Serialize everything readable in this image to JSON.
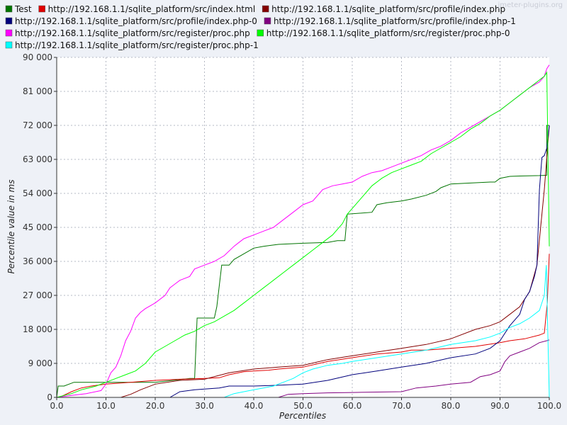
{
  "watermark": "jmeter-plugins.org",
  "chart_data": {
    "type": "line",
    "xlabel": "Percentiles",
    "ylabel": "Percentile value in ms",
    "xlim": [
      0,
      100
    ],
    "ylim": [
      0,
      90000
    ],
    "x_ticks": [
      "0.0",
      "10.0",
      "20.0",
      "30.0",
      "40.0",
      "50.0",
      "60.0",
      "70.0",
      "80.0",
      "90.0",
      "100.0"
    ],
    "y_ticks": [
      "0",
      "9 000",
      "18 000",
      "27 000",
      "36 000",
      "45 000",
      "54 000",
      "63 000",
      "72 000",
      "81 000",
      "90 000"
    ],
    "grid": true,
    "legend_position": "top",
    "series": [
      {
        "name": "Test",
        "color": "#007400",
        "x": [
          0,
          0.3,
          1.5,
          3.5,
          10,
          20,
          27,
          28,
          28.5,
          32,
          32.5,
          33.5,
          35,
          36,
          38,
          40,
          42,
          45,
          50,
          55,
          57,
          58.5,
          59,
          64,
          65,
          67,
          70,
          72,
          75,
          77,
          78,
          80,
          88,
          89,
          90,
          92,
          94,
          98,
          99.5,
          99.5,
          100
        ],
        "y": [
          0,
          3000,
          3000,
          4000,
          4000,
          4000,
          5000,
          5000,
          21000,
          21000,
          24000,
          35000,
          35000,
          36500,
          38000,
          39500,
          40000,
          40500,
          40800,
          41000,
          41500,
          41500,
          48500,
          49000,
          51000,
          51500,
          52000,
          52500,
          53500,
          54500,
          55500,
          56500,
          57000,
          57000,
          58000,
          58500,
          58600,
          58700,
          58800,
          72000,
          72000
        ]
      },
      {
        "name": "http://192.168.1.1/sqlite_platform/src/index.html",
        "color": "#e00000",
        "x": [
          0,
          1,
          3,
          5,
          7,
          10,
          13,
          15,
          20,
          25,
          30,
          33,
          35,
          38,
          40,
          43,
          45,
          50,
          55,
          60,
          65,
          70,
          72,
          75,
          80,
          85,
          90,
          92,
          95,
          98,
          99,
          99.6,
          100
        ],
        "y": [
          0,
          300,
          1500,
          2500,
          3000,
          3500,
          3800,
          4000,
          4500,
          4800,
          5000,
          5200,
          6000,
          6800,
          7000,
          7200,
          7500,
          8000,
          9500,
          10500,
          11500,
          12000,
          12500,
          12500,
          13000,
          13500,
          14500,
          15000,
          15500,
          16500,
          17000,
          25000,
          38000
        ]
      },
      {
        "name": "http://192.168.1.1/sqlite_platform/src/profile/index.php",
        "color": "#840000",
        "x": [
          0,
          13,
          15,
          17,
          20,
          25,
          30,
          35,
          40,
          45,
          50,
          55,
          60,
          65,
          70,
          75,
          80,
          85,
          88,
          90,
          92,
          94,
          96,
          97.5,
          99,
          100
        ],
        "y": [
          0,
          0,
          800,
          2000,
          3500,
          4500,
          4800,
          6500,
          7500,
          8000,
          8500,
          10000,
          11000,
          12000,
          13000,
          14000,
          15500,
          18000,
          19000,
          20000,
          22000,
          24000,
          28000,
          35000,
          55000,
          72000
        ]
      },
      {
        "name": "http://192.168.1.1/sqlite_platform/src/profile/index.php-0",
        "color": "#00007c",
        "x": [
          0,
          23,
          25,
          28,
          30,
          33,
          35,
          40,
          45,
          50,
          55,
          60,
          65,
          70,
          75,
          80,
          85,
          88,
          90,
          92,
          94,
          95,
          96,
          97,
          97.5,
          98,
          98.5,
          99,
          99.5,
          100
        ],
        "y": [
          0,
          0,
          1500,
          2000,
          2200,
          2500,
          3000,
          3000,
          3200,
          3500,
          4500,
          6000,
          7000,
          8000,
          9000,
          10500,
          11500,
          13000,
          15000,
          19000,
          22000,
          26000,
          28000,
          32000,
          35000,
          55000,
          63500,
          64000,
          66000,
          72000
        ]
      },
      {
        "name": "http://192.168.1.1/sqlite_platform/src/profile/index.php-1",
        "color": "#800080",
        "x": [
          0,
          45,
          47,
          50,
          55,
          60,
          65,
          70,
          73,
          77,
          80,
          84,
          86,
          88,
          90,
          91,
          92,
          94,
          96,
          98,
          99.5,
          100
        ],
        "y": [
          0,
          0,
          800,
          1000,
          1200,
          1300,
          1400,
          1500,
          2500,
          3000,
          3500,
          4000,
          5500,
          6000,
          7000,
          9500,
          11000,
          12000,
          13000,
          14500,
          15000,
          15200
        ]
      },
      {
        "name": "http://192.168.1.1/sqlite_platform/src/register/proc.php",
        "color": "#ff00ff",
        "x": [
          0,
          3,
          6,
          9,
          10,
          11,
          12,
          13,
          14,
          15,
          16,
          17,
          18,
          20,
          22,
          23,
          24,
          25,
          27,
          28,
          30,
          32,
          34,
          36,
          37,
          38,
          40,
          42,
          44,
          46,
          48,
          50,
          52,
          54,
          56,
          58,
          60,
          62,
          64,
          66,
          68,
          70,
          72,
          74,
          76,
          78,
          80,
          82,
          84,
          86,
          88,
          90,
          92,
          94,
          96,
          98,
          99,
          99.5,
          100
        ],
        "y": [
          0,
          500,
          1000,
          1800,
          3500,
          6500,
          8000,
          11000,
          15000,
          17500,
          21000,
          22500,
          23500,
          25000,
          27000,
          29000,
          30000,
          31000,
          32000,
          34000,
          35000,
          36000,
          37500,
          40000,
          41000,
          42000,
          43000,
          44000,
          45000,
          47000,
          49000,
          51000,
          52000,
          55000,
          56000,
          56500,
          57000,
          58500,
          59500,
          60000,
          61000,
          62000,
          63000,
          64000,
          65500,
          66500,
          68000,
          70000,
          71500,
          73000,
          74500,
          76000,
          78000,
          80000,
          82000,
          83500,
          85000,
          87000,
          88000
        ]
      },
      {
        "name": "http://192.168.1.1/sqlite_platform/src/register/proc.php-0",
        "color": "#00ff00",
        "x": [
          0,
          3,
          5,
          8,
          10,
          12,
          14,
          16,
          18,
          20,
          22,
          24,
          26,
          28,
          30,
          32,
          34,
          36,
          38,
          40,
          42,
          44,
          46,
          48,
          50,
          52,
          54,
          56,
          58,
          59,
          60,
          62,
          64,
          66,
          68,
          70,
          72,
          74,
          76,
          78,
          80,
          82,
          84,
          86,
          88,
          90,
          92,
          94,
          96,
          98,
          99,
          99.5,
          100
        ],
        "y": [
          0,
          1000,
          2000,
          3000,
          4000,
          5000,
          6000,
          7000,
          9000,
          12000,
          13500,
          15000,
          16500,
          17500,
          19000,
          20000,
          21500,
          23000,
          25000,
          27000,
          29000,
          31000,
          33000,
          35000,
          37000,
          39000,
          41000,
          43000,
          46000,
          48500,
          50000,
          53000,
          56000,
          58000,
          59500,
          60500,
          61500,
          62500,
          64500,
          66000,
          67500,
          69000,
          71000,
          72500,
          74500,
          76000,
          78000,
          80000,
          82000,
          84000,
          85000,
          86000,
          40000
        ]
      },
      {
        "name": "http://192.168.1.1/sqlite_platform/src/register/proc.php-1",
        "color": "#00ffff",
        "x": [
          0,
          34,
          36,
          38,
          40,
          42,
          44,
          46,
          48,
          50,
          52,
          55,
          58,
          60,
          65,
          70,
          75,
          80,
          85,
          88,
          90,
          92,
          94,
          96,
          98,
          99,
          99.4,
          100
        ],
        "y": [
          0,
          0,
          1000,
          1500,
          2000,
          2500,
          3000,
          4000,
          5000,
          6500,
          7500,
          8500,
          9000,
          9500,
          10500,
          11500,
          12500,
          14000,
          15000,
          16000,
          17000,
          18500,
          19500,
          21000,
          23000,
          27000,
          35000,
          0
        ]
      }
    ]
  }
}
